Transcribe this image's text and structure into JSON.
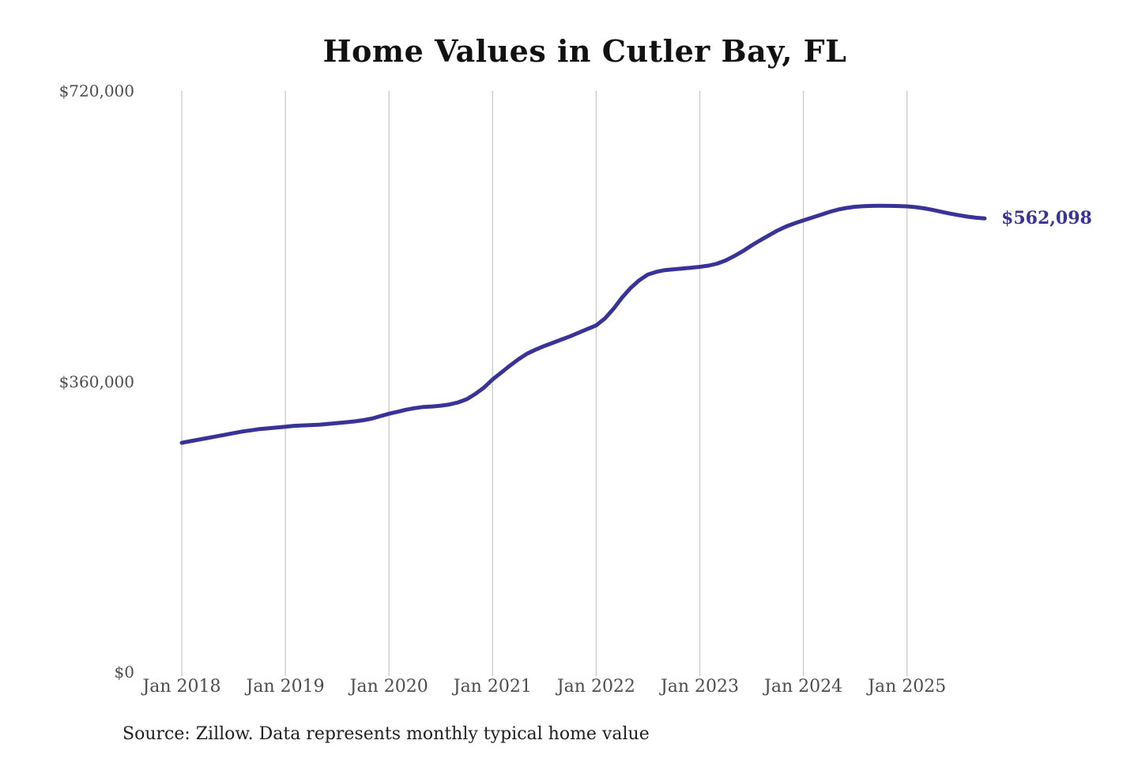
{
  "page": {
    "title": "Home Values in Cutler Bay, FL",
    "source_note": "Source: Zillow. Data represents monthly typical home value"
  },
  "chart_data": {
    "type": "line",
    "title": "Home Values in Cutler Bay, FL",
    "xlabel": "",
    "ylabel": "",
    "x_start": "2018-01",
    "x_end": "2025-10",
    "frequency": "monthly",
    "x_tick_labels": [
      "Jan 2018",
      "Jan 2019",
      "Jan 2020",
      "Jan 2021",
      "Jan 2022",
      "Jan 2023",
      "Jan 2024",
      "Jan 2025"
    ],
    "y_ticks": [
      {
        "label": "$0",
        "value": 0
      },
      {
        "label": "$360,000",
        "value": 360000
      },
      {
        "label": "$720,000",
        "value": 720000
      }
    ],
    "ylim": [
      0,
      720000
    ],
    "grid": "vertical-only",
    "legend": "none",
    "line_color": "#3a3397",
    "gridline_color": "#c9c9c9",
    "tick_text_color": "#4d4d4d",
    "latest_value": 562098,
    "latest_label": "$562,098",
    "series": [
      {
        "name": "Monthly typical home value",
        "values": [
          284000,
          286000,
          288000,
          290000,
          292000,
          294000,
          296000,
          298000,
          299500,
          301000,
          302000,
          303000,
          304000,
          305000,
          305500,
          306000,
          306500,
          307500,
          308500,
          309500,
          310500,
          312000,
          314000,
          317000,
          320000,
          322500,
          325000,
          327000,
          328500,
          329000,
          330000,
          331500,
          334000,
          338000,
          344500,
          352500,
          362500,
          371000,
          379500,
          387500,
          394500,
          399500,
          404000,
          408000,
          412000,
          416000,
          420500,
          425000,
          429500,
          438000,
          450000,
          464000,
          476000,
          485500,
          492500,
          496000,
          498000,
          499000,
          500000,
          501000,
          502000,
          503500,
          506000,
          510000,
          515500,
          521500,
          528500,
          535000,
          541000,
          547000,
          552000,
          556000,
          559500,
          563000,
          566500,
          570000,
          573000,
          575000,
          576500,
          577300,
          577600,
          577700,
          577600,
          577400,
          577000,
          576000,
          574500,
          572500,
          570200,
          568000,
          566000,
          564200,
          562900,
          562098
        ]
      }
    ]
  }
}
